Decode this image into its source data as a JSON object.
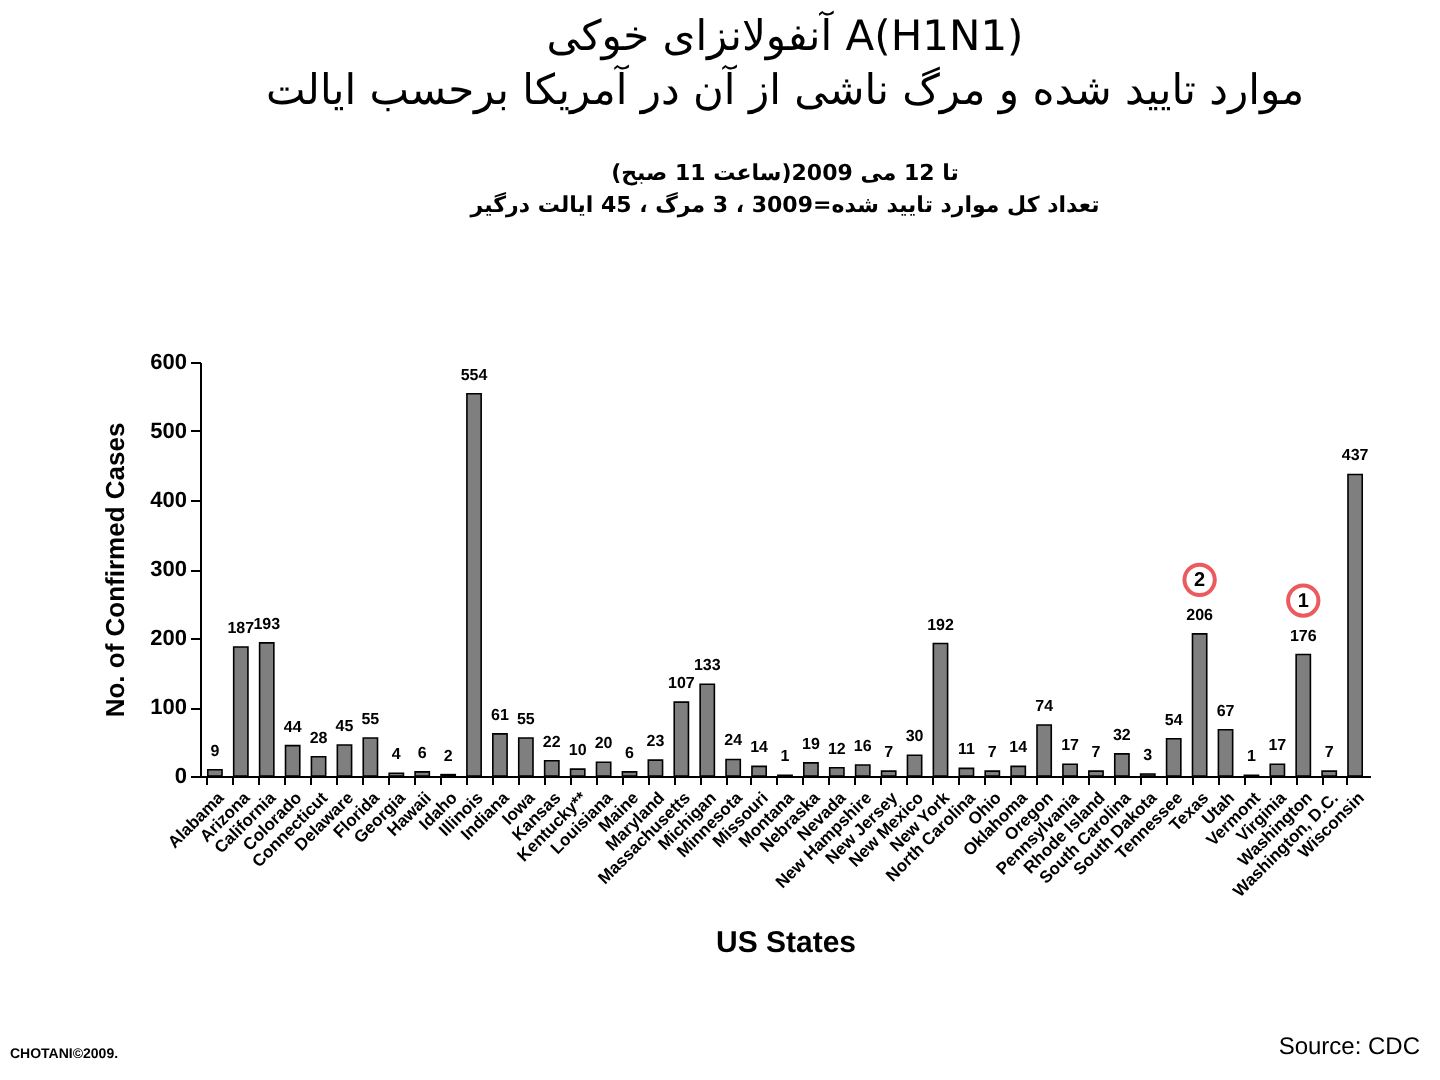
{
  "chart_data": {
    "type": "bar",
    "title": "آنفولانزای خوکی A(H1N1)\nموارد تایید شده و مرگ ناشی از آن در آمریکا برحسب ایالت",
    "subtitle": "تا 12 می 2009(ساعت 11 صبح)\nتعداد کل موارد تایید شده=3009 ، 3 مرگ ، 45 ایالت درگیر",
    "xlabel": "US States",
    "ylabel": "No. of Confirmed Cases",
    "categories": [
      "Alabama",
      "Arizona",
      "California",
      "Colorado",
      "Connecticut",
      "Delaware",
      "Florida",
      "Georgia",
      "Hawaii",
      "Idaho",
      "Illinois",
      "Indiana",
      "Iowa",
      "Kansas",
      "Kentucky**",
      "Louisiana",
      "Maine",
      "Maryland",
      "Massachusetts",
      "Michigan",
      "Minnesota",
      "Missouri",
      "Montana",
      "Nebraska",
      "Nevada",
      "New Hampshire",
      "New Jersey",
      "New Mexico",
      "New York",
      "North Carolina",
      "Ohio",
      "Oklahoma",
      "Oregon",
      "Pennsylvania",
      "Rhode Island",
      "South Carolina",
      "South Dakota",
      "Tennessee",
      "Texas",
      "Utah",
      "Vermont",
      "Virginia",
      "Washington",
      "Washington, D.C.",
      "Wisconsin"
    ],
    "values": [
      9,
      187,
      193,
      44,
      28,
      45,
      55,
      4,
      6,
      2,
      554,
      61,
      55,
      22,
      10,
      20,
      6,
      23,
      107,
      133,
      24,
      14,
      1,
      19,
      12,
      16,
      7,
      30,
      192,
      11,
      7,
      14,
      74,
      17,
      7,
      32,
      3,
      54,
      206,
      67,
      1,
      17,
      176,
      7,
      437
    ],
    "color": "#7f7f7f",
    "ylim": [
      0,
      600
    ],
    "yticks": [
      0,
      100,
      200,
      300,
      400,
      500,
      600
    ],
    "grid": false,
    "data_labels": true,
    "annotations": [
      {
        "text": "2",
        "x": "Texas",
        "y": 206
      },
      {
        "text": "1",
        "x": "Washington",
        "y": 176
      },
      "CHOTANI©2009.",
      "Source: CDC"
    ]
  }
}
